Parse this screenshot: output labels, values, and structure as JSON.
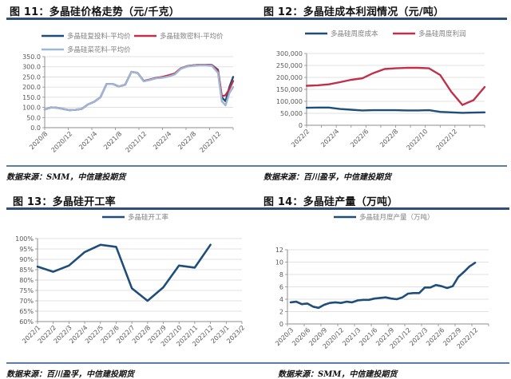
{
  "figures": {
    "fig11": {
      "title": "图 11：多晶硅价格走势（元/千克）",
      "source": "数据来源：SMM，中信建投期货"
    },
    "fig12": {
      "title": "图 12：多晶硅成本利润情况（元/吨）",
      "source": "数据来源：百川盈孚，中信建投期货"
    },
    "fig13": {
      "title": "图 13：多晶硅开工率",
      "source": "数据来源：百川盈孚，中信建投期货"
    },
    "fig14": {
      "title": "图 14：多晶硅产量（万吨）",
      "source": "数据来源：SMM，中信建投期货"
    }
  },
  "colors": {
    "navy": "#1f4e79",
    "red": "#c0304a",
    "lightblue": "#9db7d5",
    "rule": "#2f4f7a",
    "grid": "#d9d9d9",
    "axis": "#8c8c8c"
  },
  "chart_data": [
    {
      "id": "fig11",
      "type": "line",
      "title": "多晶硅价格走势（元/千克）",
      "xlabel": "",
      "ylabel": "元/千克",
      "ylim": [
        0,
        350
      ],
      "yticks": [
        "0.0",
        "50.0",
        "100.0",
        "150.0",
        "200.0",
        "250.0",
        "300.0",
        "350.0"
      ],
      "x_tick_labels": [
        "2020/8",
        "2020/12",
        "2021/4",
        "2021/8",
        "2021/12",
        "2022/4",
        "2022/8",
        "2022/12"
      ],
      "grid": true,
      "legend_position": "top",
      "x": [
        "2020/8",
        "2020/9",
        "2020/10",
        "2020/11",
        "2020/12",
        "2021/1",
        "2021/2",
        "2021/3",
        "2021/4",
        "2021/5",
        "2021/6",
        "2021/7",
        "2021/8",
        "2021/9",
        "2021/10",
        "2021/11",
        "2021/12",
        "2022/1",
        "2022/2",
        "2022/3",
        "2022/4",
        "2022/5",
        "2022/6",
        "2022/7",
        "2022/8",
        "2022/9",
        "2022/10",
        "2022/11",
        "2022/12",
        "2023/1 early",
        "2023/1 mid",
        "2023/1 late",
        "2023/2"
      ],
      "series": [
        {
          "name": "多晶硅复投料-平均价",
          "color": "#1f4e79",
          "values": [
            90,
            100,
            98,
            92,
            86,
            88,
            93,
            115,
            128,
            150,
            215,
            215,
            203,
            212,
            275,
            270,
            230,
            237,
            245,
            248,
            255,
            265,
            292,
            303,
            307,
            310,
            310,
            309,
            285,
            150,
            130,
            200,
            250
          ]
        },
        {
          "name": "多晶硅致密料-平均价",
          "color": "#c0304a",
          "values": [
            90,
            100,
            98,
            92,
            86,
            88,
            93,
            115,
            128,
            150,
            215,
            215,
            203,
            212,
            275,
            270,
            230,
            237,
            245,
            250,
            258,
            267,
            292,
            303,
            307,
            310,
            310,
            308,
            280,
            155,
            160,
            190,
            230
          ]
        },
        {
          "name": "多晶硅菜花料-平均价",
          "color": "#9db7d5",
          "values": [
            90,
            100,
            98,
            92,
            86,
            88,
            93,
            115,
            128,
            150,
            215,
            215,
            203,
            212,
            275,
            270,
            228,
            235,
            243,
            246,
            252,
            262,
            290,
            301,
            305,
            308,
            308,
            305,
            270,
            130,
            110,
            170,
            200
          ]
        }
      ]
    },
    {
      "id": "fig12",
      "type": "line",
      "title": "多晶硅成本利润情况（元/吨）",
      "xlabel": "",
      "ylabel": "元/吨",
      "ylim": [
        0,
        300000
      ],
      "yticks": [
        "0",
        "50,000",
        "100,000",
        "150,000",
        "200,000",
        "250,000",
        "300,000"
      ],
      "x_tick_labels": [
        "2022/2",
        "2022/4",
        "2022/6",
        "2022/8",
        "2022/10",
        "2022/12"
      ],
      "grid": true,
      "legend_position": "top",
      "x": [
        "2022/2",
        "2022/3",
        "2022/4",
        "2022/4b",
        "2022/5",
        "2022/6",
        "2022/6b",
        "2022/7",
        "2022/8",
        "2022/9",
        "2022/10",
        "2022/11",
        "2022/12",
        "2022/12b",
        "2023/1",
        "2023/1b",
        "2023/2"
      ],
      "series": [
        {
          "name": "多晶硅周度成本",
          "color": "#1f4e79",
          "values": [
            73000,
            74000,
            74000,
            68000,
            65000,
            62000,
            63000,
            63000,
            63000,
            62000,
            62000,
            63000,
            56000,
            54000,
            52000,
            53000,
            54000
          ]
        },
        {
          "name": "多晶硅周度利润",
          "color": "#c0304a",
          "values": [
            165000,
            167000,
            171000,
            180000,
            190000,
            196000,
            218000,
            235000,
            238000,
            240000,
            240000,
            238000,
            210000,
            140000,
            85000,
            105000,
            160000
          ]
        }
      ]
    },
    {
      "id": "fig13",
      "type": "line",
      "title": "多晶硅开工率",
      "xlabel": "",
      "ylabel": "",
      "ylim": [
        0.6,
        1.0
      ],
      "yticks": [
        "60%",
        "65%",
        "70%",
        "75%",
        "80%",
        "85%",
        "90%",
        "95%",
        "100%"
      ],
      "categories": [
        "2022/1",
        "2022/2",
        "2022/3",
        "2022/4",
        "2022/5",
        "2022/6",
        "2022/7",
        "2022/8",
        "2022/9",
        "2022/10",
        "2022/11",
        "2022/12",
        "2023/1",
        "2023/2"
      ],
      "grid": true,
      "legend_position": "top",
      "series": [
        {
          "name": "多晶硅开工率",
          "color": "#1f4e79",
          "values": [
            0.865,
            0.84,
            0.87,
            0.935,
            0.97,
            0.96,
            0.76,
            0.7,
            0.765,
            0.87,
            0.86,
            0.97,
            null,
            null
          ]
        }
      ]
    },
    {
      "id": "fig14",
      "type": "line",
      "title": "多晶硅产量（万吨）",
      "xlabel": "",
      "ylabel": "万吨",
      "ylim": [
        0,
        12
      ],
      "yticks": [
        "0",
        "2",
        "4",
        "6",
        "8",
        "10",
        "12"
      ],
      "x_tick_labels": [
        "2020/3",
        "2020/6",
        "2020/9",
        "2020/12",
        "2021/3",
        "2021/6",
        "2021/9",
        "2021/12",
        "2022/3",
        "2022/6",
        "2022/9",
        "2022/12"
      ],
      "grid": true,
      "legend_position": "top",
      "x": [
        "2020/3",
        "2020/4",
        "2020/5",
        "2020/6",
        "2020/7",
        "2020/8",
        "2020/9",
        "2020/10",
        "2020/11",
        "2020/12",
        "2021/1",
        "2021/2",
        "2021/3",
        "2021/4",
        "2021/5",
        "2021/6",
        "2021/7",
        "2021/8",
        "2021/9",
        "2021/10",
        "2021/11",
        "2021/12",
        "2022/1",
        "2022/2",
        "2022/3",
        "2022/4",
        "2022/5",
        "2022/6",
        "2022/7",
        "2022/8",
        "2022/9",
        "2022/10",
        "2022/11",
        "2022/12"
      ],
      "series": [
        {
          "name": "多晶硅月度产量（万吨）",
          "color": "#1f4e79",
          "values": [
            3.5,
            3.6,
            3.2,
            3.3,
            2.8,
            2.6,
            3.1,
            3.4,
            3.5,
            3.4,
            3.6,
            3.5,
            3.8,
            3.9,
            3.9,
            4.1,
            4.2,
            4.3,
            4.1,
            4.0,
            4.3,
            4.9,
            5.0,
            5.0,
            5.9,
            5.9,
            6.3,
            6.1,
            5.8,
            6.1,
            7.6,
            8.4,
            9.3,
            9.9
          ]
        }
      ]
    }
  ]
}
